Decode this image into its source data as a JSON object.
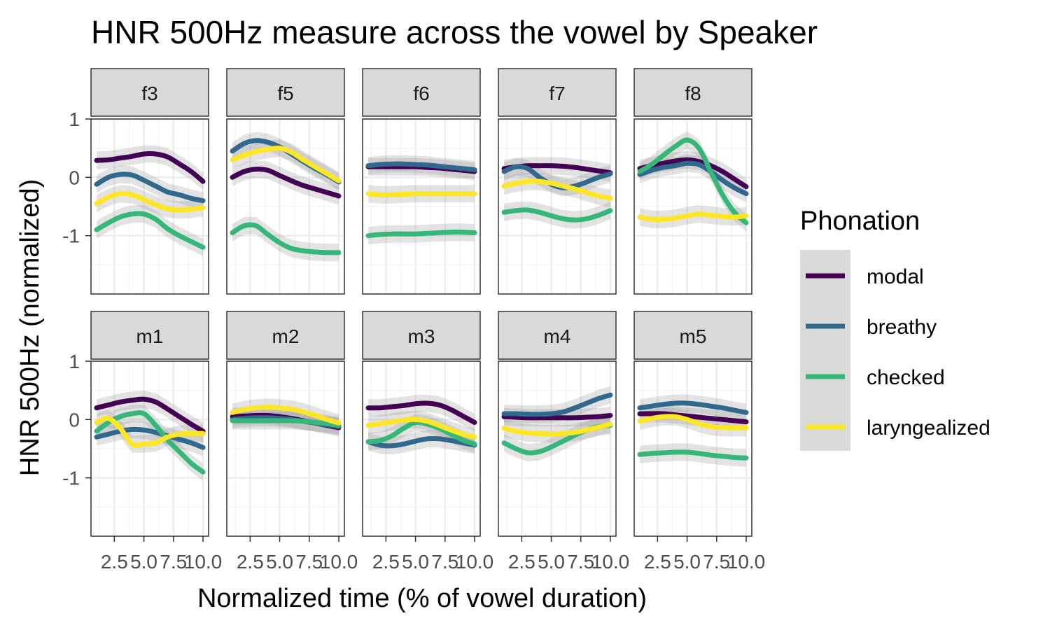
{
  "chart_data": {
    "type": "line",
    "title": "HNR 500Hz measure across the vowel by Speaker",
    "xlabel": "Normalized time (% of vowel duration)",
    "ylabel": "HNR 500Hz (normalized)",
    "xlim": [
      1,
      10
    ],
    "ylim": [
      -2,
      1
    ],
    "x_ticks": [
      2.5,
      5.0,
      7.5,
      10.0
    ],
    "x_tick_labels": [
      "2.5",
      "5.0",
      "7.5",
      "10.0"
    ],
    "y_ticks": [
      1,
      0,
      -1
    ],
    "y_tick_labels": [
      "1",
      "0",
      "-1"
    ],
    "grid": true,
    "legend": {
      "title": "Phonation",
      "position": "right",
      "entries": [
        {
          "name": "modal",
          "color": "#440154"
        },
        {
          "name": "breathy",
          "color": "#31688e"
        },
        {
          "name": "checked",
          "color": "#35b779"
        },
        {
          "name": "laryngealized",
          "color": "#fde725"
        }
      ]
    },
    "x": [
      1,
      2,
      3,
      4,
      5,
      6,
      7,
      8,
      9,
      10
    ],
    "panels": [
      {
        "name": "f3",
        "series": [
          {
            "name": "modal",
            "values": [
              0.29,
              0.3,
              0.33,
              0.36,
              0.4,
              0.4,
              0.35,
              0.23,
              0.1,
              -0.07
            ]
          },
          {
            "name": "breathy",
            "values": [
              -0.12,
              0.0,
              0.05,
              0.04,
              -0.05,
              -0.15,
              -0.25,
              -0.3,
              -0.36,
              -0.4
            ]
          },
          {
            "name": "checked",
            "values": [
              -0.9,
              -0.78,
              -0.68,
              -0.63,
              -0.63,
              -0.72,
              -0.88,
              -1.0,
              -1.1,
              -1.2
            ]
          },
          {
            "name": "laryngealized",
            "values": [
              -0.45,
              -0.34,
              -0.28,
              -0.3,
              -0.38,
              -0.47,
              -0.54,
              -0.56,
              -0.55,
              -0.52
            ]
          }
        ]
      },
      {
        "name": "f5",
        "series": [
          {
            "name": "modal",
            "values": [
              0.0,
              0.1,
              0.14,
              0.12,
              0.03,
              -0.06,
              -0.14,
              -0.2,
              -0.26,
              -0.32
            ]
          },
          {
            "name": "breathy",
            "values": [
              0.45,
              0.58,
              0.63,
              0.6,
              0.52,
              0.4,
              0.27,
              0.15,
              0.04,
              -0.08
            ]
          },
          {
            "name": "checked",
            "values": [
              -0.95,
              -0.83,
              -0.83,
              -0.98,
              -1.12,
              -1.22,
              -1.26,
              -1.28,
              -1.29,
              -1.29
            ]
          },
          {
            "name": "laryngealized",
            "values": [
              0.3,
              0.38,
              0.44,
              0.48,
              0.5,
              0.43,
              0.3,
              0.18,
              0.06,
              -0.06
            ]
          }
        ]
      },
      {
        "name": "f6",
        "series": [
          {
            "name": "modal",
            "values": [
              0.18,
              0.18,
              0.18,
              0.18,
              0.18,
              0.17,
              0.16,
              0.14,
              0.12,
              0.1
            ]
          },
          {
            "name": "breathy",
            "values": [
              0.2,
              0.22,
              0.23,
              0.23,
              0.22,
              0.21,
              0.19,
              0.17,
              0.15,
              0.13
            ]
          },
          {
            "name": "checked",
            "values": [
              -1.0,
              -0.98,
              -0.97,
              -0.97,
              -0.97,
              -0.96,
              -0.95,
              -0.94,
              -0.94,
              -0.95
            ]
          },
          {
            "name": "laryngealized",
            "values": [
              -0.28,
              -0.3,
              -0.3,
              -0.29,
              -0.28,
              -0.28,
              -0.28,
              -0.28,
              -0.28,
              -0.28
            ]
          }
        ]
      },
      {
        "name": "f7",
        "series": [
          {
            "name": "modal",
            "values": [
              0.15,
              0.18,
              0.2,
              0.2,
              0.2,
              0.19,
              0.17,
              0.14,
              0.11,
              0.08
            ]
          },
          {
            "name": "breathy",
            "values": [
              0.1,
              0.18,
              0.15,
              0.0,
              -0.12,
              -0.18,
              -0.15,
              -0.08,
              0.0,
              0.06
            ]
          },
          {
            "name": "checked",
            "values": [
              -0.6,
              -0.57,
              -0.56,
              -0.6,
              -0.66,
              -0.71,
              -0.73,
              -0.71,
              -0.65,
              -0.57
            ]
          },
          {
            "name": "laryngealized",
            "values": [
              -0.15,
              -0.1,
              -0.07,
              -0.07,
              -0.1,
              -0.15,
              -0.2,
              -0.26,
              -0.32,
              -0.36
            ]
          }
        ]
      },
      {
        "name": "f8",
        "series": [
          {
            "name": "modal",
            "values": [
              0.15,
              0.2,
              0.24,
              0.28,
              0.3,
              0.27,
              0.2,
              0.1,
              -0.03,
              -0.16
            ]
          },
          {
            "name": "breathy",
            "values": [
              0.05,
              0.12,
              0.17,
              0.2,
              0.24,
              0.22,
              0.1,
              -0.05,
              -0.18,
              -0.28
            ]
          },
          {
            "name": "checked",
            "values": [
              0.1,
              0.22,
              0.38,
              0.53,
              0.64,
              0.5,
              0.1,
              -0.3,
              -0.6,
              -0.78
            ]
          },
          {
            "name": "laryngealized",
            "values": [
              -0.68,
              -0.72,
              -0.72,
              -0.7,
              -0.66,
              -0.63,
              -0.65,
              -0.67,
              -0.68,
              -0.66
            ]
          }
        ]
      },
      {
        "name": "m1",
        "series": [
          {
            "name": "modal",
            "values": [
              0.2,
              0.25,
              0.3,
              0.33,
              0.35,
              0.3,
              0.18,
              0.05,
              -0.08,
              -0.2
            ]
          },
          {
            "name": "breathy",
            "values": [
              -0.3,
              -0.25,
              -0.2,
              -0.17,
              -0.18,
              -0.22,
              -0.28,
              -0.34,
              -0.4,
              -0.48
            ]
          },
          {
            "name": "checked",
            "values": [
              -0.2,
              -0.05,
              0.05,
              0.1,
              0.1,
              -0.1,
              -0.35,
              -0.55,
              -0.75,
              -0.9
            ]
          },
          {
            "name": "laryngealized",
            "values": [
              -0.05,
              0.02,
              -0.15,
              -0.42,
              -0.42,
              -0.4,
              -0.3,
              -0.25,
              -0.24,
              -0.24
            ]
          }
        ]
      },
      {
        "name": "m2",
        "series": [
          {
            "name": "modal",
            "values": [
              0.05,
              0.06,
              0.07,
              0.07,
              0.05,
              0.02,
              -0.02,
              -0.06,
              -0.1,
              -0.14
            ]
          },
          {
            "name": "breathy",
            "values": [
              0.0,
              0.02,
              0.03,
              0.03,
              0.02,
              0.0,
              -0.03,
              -0.06,
              -0.09,
              -0.12
            ]
          },
          {
            "name": "checked",
            "values": [
              -0.02,
              -0.02,
              -0.02,
              -0.02,
              -0.02,
              -0.02,
              -0.03,
              -0.05,
              -0.07,
              -0.1
            ]
          },
          {
            "name": "laryngealized",
            "values": [
              0.12,
              0.17,
              0.2,
              0.21,
              0.2,
              0.18,
              0.13,
              0.07,
              0.0,
              -0.06
            ]
          }
        ]
      },
      {
        "name": "m3",
        "series": [
          {
            "name": "modal",
            "values": [
              0.2,
              0.2,
              0.22,
              0.24,
              0.27,
              0.28,
              0.25,
              0.17,
              0.06,
              -0.05
            ]
          },
          {
            "name": "breathy",
            "values": [
              -0.38,
              -0.44,
              -0.45,
              -0.42,
              -0.37,
              -0.33,
              -0.33,
              -0.36,
              -0.4,
              -0.44
            ]
          },
          {
            "name": "checked",
            "values": [
              -0.38,
              -0.36,
              -0.28,
              -0.15,
              -0.05,
              -0.08,
              -0.15,
              -0.25,
              -0.35,
              -0.42
            ]
          },
          {
            "name": "laryngealized",
            "values": [
              -0.1,
              -0.07,
              -0.04,
              -0.01,
              0.0,
              -0.03,
              -0.1,
              -0.18,
              -0.25,
              -0.3
            ]
          }
        ]
      },
      {
        "name": "m4",
        "series": [
          {
            "name": "modal",
            "values": [
              0.05,
              0.04,
              0.03,
              0.03,
              0.03,
              0.03,
              0.03,
              0.04,
              0.05,
              0.07
            ]
          },
          {
            "name": "breathy",
            "values": [
              0.1,
              0.1,
              0.09,
              0.09,
              0.1,
              0.13,
              0.2,
              0.28,
              0.36,
              0.42
            ]
          },
          {
            "name": "checked",
            "values": [
              -0.4,
              -0.5,
              -0.57,
              -0.55,
              -0.47,
              -0.37,
              -0.27,
              -0.18,
              -0.12,
              -0.1
            ]
          },
          {
            "name": "laryngealized",
            "values": [
              -0.15,
              -0.2,
              -0.23,
              -0.24,
              -0.25,
              -0.24,
              -0.22,
              -0.18,
              -0.13,
              -0.08
            ]
          }
        ]
      },
      {
        "name": "m5",
        "series": [
          {
            "name": "modal",
            "values": [
              0.1,
              0.1,
              0.1,
              0.08,
              0.06,
              0.04,
              0.02,
              0.0,
              -0.02,
              -0.04
            ]
          },
          {
            "name": "breathy",
            "values": [
              0.2,
              0.23,
              0.26,
              0.28,
              0.28,
              0.26,
              0.23,
              0.2,
              0.16,
              0.12
            ]
          },
          {
            "name": "checked",
            "values": [
              -0.6,
              -0.58,
              -0.57,
              -0.56,
              -0.56,
              -0.58,
              -0.61,
              -0.63,
              -0.65,
              -0.66
            ]
          },
          {
            "name": "laryngealized",
            "values": [
              -0.03,
              0.02,
              0.05,
              0.05,
              0.0,
              -0.07,
              -0.12,
              -0.14,
              -0.14,
              -0.14
            ]
          }
        ]
      }
    ]
  }
}
